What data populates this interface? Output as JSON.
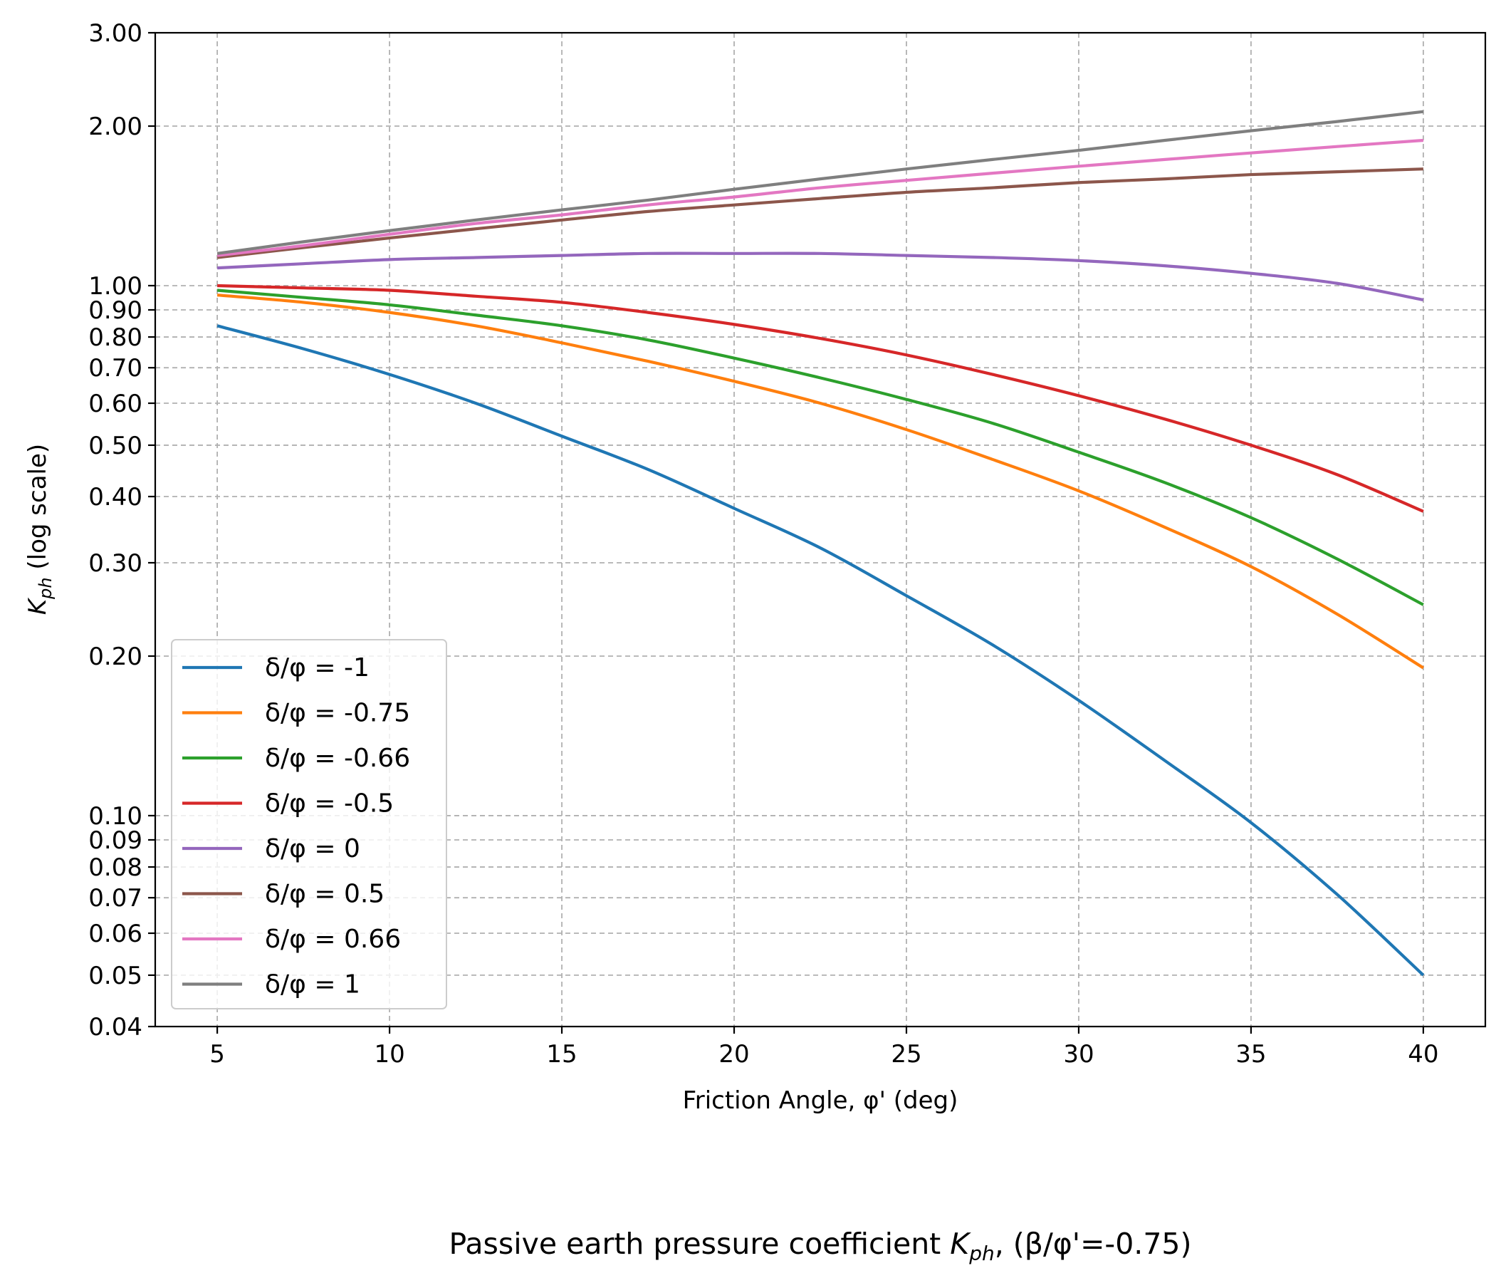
{
  "chart_data": {
    "type": "line",
    "title": "",
    "caption_prefix": "Passive earth pressure coefficient ",
    "caption_symbol": "K",
    "caption_subscript": "ph",
    "caption_suffix": ", (β/φ'=-0.75)",
    "xlabel": "Friction Angle, φ' (deg)",
    "ylabel_symbol": "K",
    "ylabel_subscript": "ph",
    "ylabel_suffix": " (log scale)",
    "y_scale": "log",
    "xlim": [
      3.2,
      41.8
    ],
    "ylim": [
      0.04,
      3.0
    ],
    "x_ticks": [
      5,
      10,
      15,
      20,
      25,
      30,
      35,
      40
    ],
    "x_tick_labels": [
      "5",
      "10",
      "15",
      "20",
      "25",
      "30",
      "35",
      "40"
    ],
    "y_ticks": [
      0.04,
      0.05,
      0.06,
      0.07,
      0.08,
      0.09,
      0.1,
      0.2,
      0.3,
      0.4,
      0.5,
      0.6,
      0.7,
      0.8,
      0.9,
      1.0,
      2.0,
      3.0
    ],
    "y_tick_labels": [
      "0.04",
      "0.05",
      "0.06",
      "0.07",
      "0.08",
      "0.09",
      "0.10",
      "0.20",
      "0.30",
      "0.40",
      "0.50",
      "0.60",
      "0.70",
      "0.80",
      "0.90",
      "1.00",
      "2.00",
      "3.00"
    ],
    "grid": true,
    "legend_position": "lower-left",
    "x": [
      5,
      7.5,
      10,
      12.5,
      15,
      17.5,
      20,
      22.5,
      25,
      27.5,
      30,
      32.5,
      35,
      37.5,
      40
    ],
    "series": [
      {
        "name": "δ/φ = -1",
        "color": "#1f77b4",
        "values": [
          0.84,
          0.76,
          0.68,
          0.6,
          0.52,
          0.45,
          0.38,
          0.32,
          0.26,
          0.21,
          0.165,
          0.127,
          0.097,
          0.071,
          0.05
        ]
      },
      {
        "name": "δ/φ = -0.75",
        "color": "#ff7f0e",
        "values": [
          0.96,
          0.93,
          0.89,
          0.84,
          0.78,
          0.72,
          0.66,
          0.6,
          0.535,
          0.47,
          0.41,
          0.35,
          0.295,
          0.24,
          0.19
        ]
      },
      {
        "name": "δ/φ = -0.66",
        "color": "#2ca02c",
        "values": [
          0.98,
          0.95,
          0.92,
          0.88,
          0.84,
          0.79,
          0.73,
          0.67,
          0.61,
          0.55,
          0.485,
          0.425,
          0.365,
          0.305,
          0.25
        ]
      },
      {
        "name": "δ/φ = -0.5",
        "color": "#d62728",
        "values": [
          1.0,
          0.99,
          0.98,
          0.955,
          0.93,
          0.89,
          0.845,
          0.795,
          0.74,
          0.68,
          0.62,
          0.56,
          0.5,
          0.44,
          0.375
        ]
      },
      {
        "name": "δ/φ = 0",
        "color": "#9467bd",
        "values": [
          1.08,
          1.1,
          1.12,
          1.13,
          1.14,
          1.15,
          1.15,
          1.15,
          1.14,
          1.13,
          1.115,
          1.09,
          1.055,
          1.01,
          0.94
        ]
      },
      {
        "name": "δ/φ = 0.5",
        "color": "#8c564b",
        "values": [
          1.13,
          1.18,
          1.23,
          1.28,
          1.33,
          1.38,
          1.42,
          1.46,
          1.5,
          1.53,
          1.565,
          1.59,
          1.62,
          1.64,
          1.66
        ]
      },
      {
        "name": "δ/φ = 0.66",
        "color": "#e377c2",
        "values": [
          1.14,
          1.19,
          1.25,
          1.31,
          1.36,
          1.42,
          1.47,
          1.53,
          1.58,
          1.63,
          1.68,
          1.73,
          1.78,
          1.83,
          1.88
        ]
      },
      {
        "name": "δ/φ = 1",
        "color": "#7f7f7f",
        "values": [
          1.15,
          1.21,
          1.27,
          1.33,
          1.39,
          1.45,
          1.52,
          1.59,
          1.66,
          1.73,
          1.8,
          1.88,
          1.96,
          2.04,
          2.13
        ]
      }
    ]
  }
}
